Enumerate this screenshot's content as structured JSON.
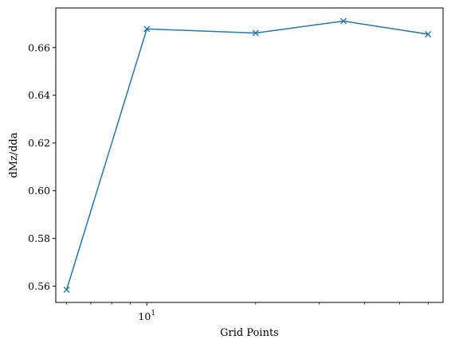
{
  "chart_data": {
    "type": "line",
    "title": "",
    "xlabel": "Grid Points",
    "ylabel": "dMz/dda",
    "x_scale": "log",
    "x_tick_label": {
      "base": "10",
      "exponent": "1"
    },
    "x": [
      6,
      10,
      20,
      35,
      60
    ],
    "y": [
      0.5585,
      0.6678,
      0.6661,
      0.6711,
      0.6656
    ],
    "xlim": [
      5.6,
      66
    ],
    "ylim": [
      0.5532,
      0.6766
    ],
    "yticks": [
      0.56,
      0.58,
      0.6,
      0.62,
      0.64,
      0.66
    ],
    "ytick_labels": [
      "0.56",
      "0.58",
      "0.60",
      "0.62",
      "0.64",
      "0.66"
    ],
    "marker": "x",
    "color": "#1f77b4",
    "grid": false
  }
}
